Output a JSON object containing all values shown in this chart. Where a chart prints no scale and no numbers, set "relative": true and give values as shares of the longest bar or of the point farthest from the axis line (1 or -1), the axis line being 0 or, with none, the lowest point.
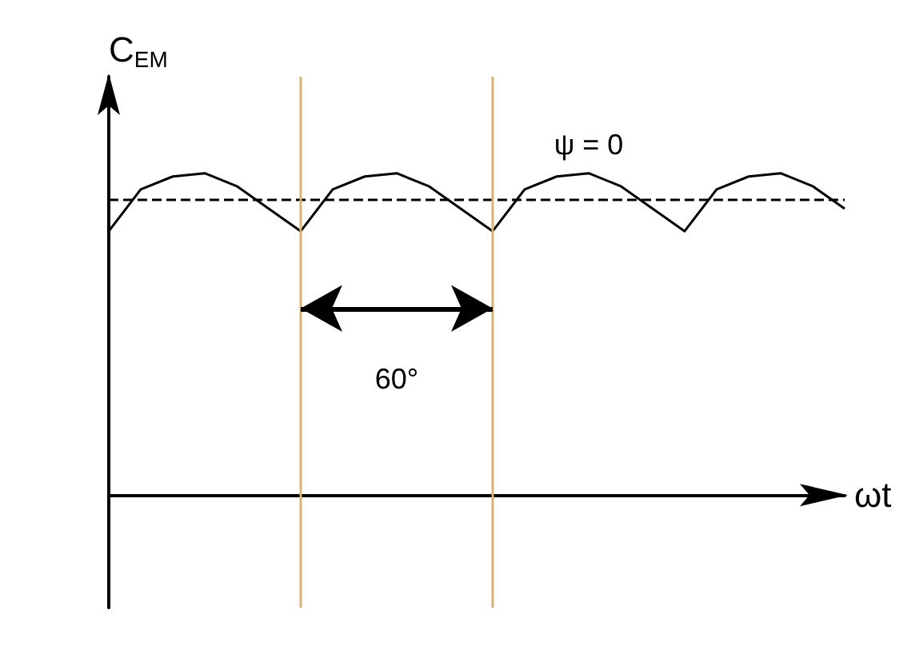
{
  "chart_data": {
    "type": "line",
    "relative": true,
    "xlabel": "ωt",
    "ylabel": "C$_{EM}$",
    "categories": [
      null,
      null,
      null,
      null,
      null,
      null,
      null,
      null,
      null,
      null,
      null,
      null,
      null,
      null,
      null,
      null,
      null,
      null,
      null,
      null,
      null,
      null,
      null,
      null
    ],
    "series": [
      {
        "color": "#000000",
        "values": [
          0.82,
          0.95,
          0.99,
          1.0,
          0.96,
          0.89,
          0.82,
          0.95,
          0.99,
          1.0,
          0.96,
          0.89,
          0.82,
          0.95,
          0.99,
          1.0,
          0.96,
          0.89,
          0.82,
          0.95,
          0.99,
          1.0,
          0.96,
          0.89
        ]
      }
    ],
    "ref_lines": [
      {
        "axis": "y",
        "value": 0.92,
        "color": "#000000",
        "line_style": "dashed"
      }
    ],
    "annotations": [
      "ψ = 0",
      "60°"
    ],
    "marker": "none",
    "line_style": "solid",
    "grid": false
  }
}
